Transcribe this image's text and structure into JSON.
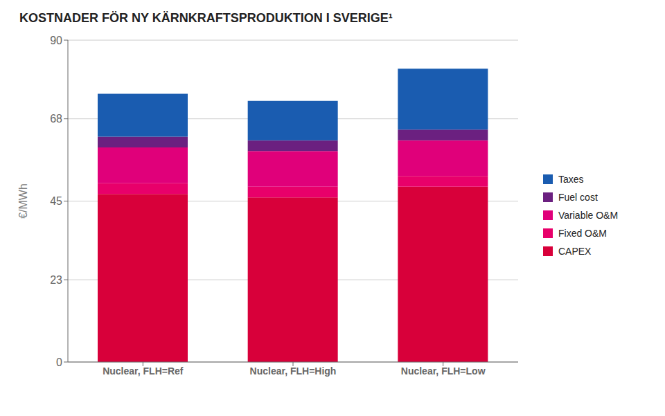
{
  "chart_data": {
    "type": "bar",
    "stacked": true,
    "title": "KOSTNADER FÖR NY KÄRNKRAFTSPRODUKTION I SVERIGE¹",
    "ylabel": "€/MWh",
    "categories": [
      "Nuclear, FLH=Ref",
      "Nuclear, FLH=High",
      "Nuclear, FLH=Low"
    ],
    "series": [
      {
        "name": "CAPEX",
        "color": "#d8003a",
        "values": [
          47,
          46,
          49
        ]
      },
      {
        "name": "Fixed O&M",
        "color": "#e8006a",
        "values": [
          3,
          3,
          3
        ]
      },
      {
        "name": "Variable O&M",
        "color": "#e0007a",
        "values": [
          10,
          10,
          10
        ]
      },
      {
        "name": "Fuel cost",
        "color": "#6b2080",
        "values": [
          3,
          3,
          3
        ]
      },
      {
        "name": "Taxes",
        "color": "#1a5cb0",
        "values": [
          12,
          11,
          17
        ]
      }
    ],
    "ylim": [
      0,
      90
    ],
    "yticks": [
      0,
      23,
      45,
      68,
      90
    ],
    "grid": true,
    "legend": "right"
  }
}
